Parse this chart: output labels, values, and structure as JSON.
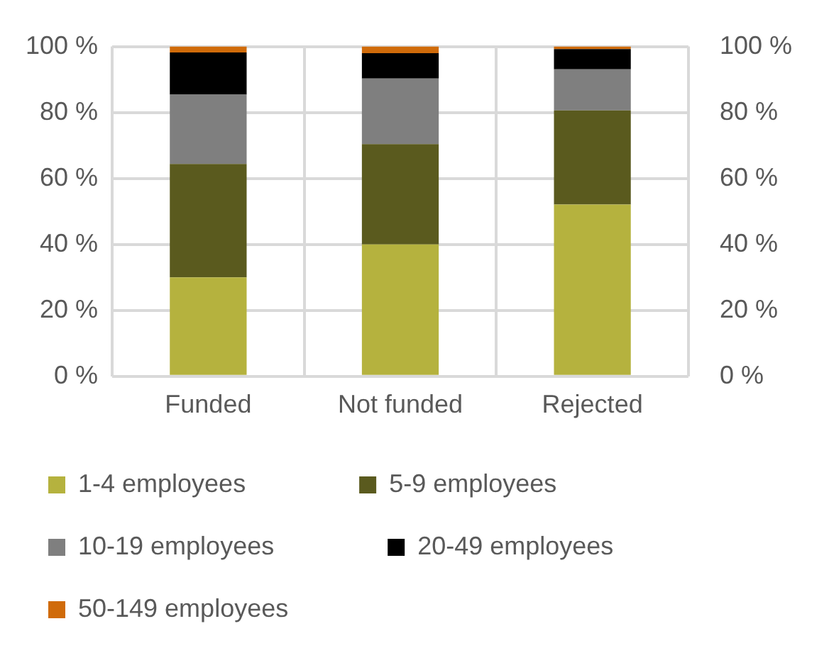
{
  "chart_data": {
    "type": "bar",
    "stacked": true,
    "categories": [
      "Funded",
      "Not funded",
      "Rejected"
    ],
    "series": [
      {
        "name": "1-4 employees",
        "color": "#b5b23e",
        "values": [
          30,
          40,
          52.1
        ]
      },
      {
        "name": "5-9 employees",
        "color": "#5a5a1e",
        "values": [
          34.4,
          30.4,
          28.5
        ]
      },
      {
        "name": "10-19 employees",
        "color": "#7f7f7f",
        "values": [
          21,
          19.9,
          12.5
        ]
      },
      {
        "name": "20-49 employees",
        "color": "#000000",
        "values": [
          12.8,
          7.7,
          6.1
        ]
      },
      {
        "name": "50-149 employees",
        "color": "#d06b0a",
        "values": [
          1.8,
          2,
          0.8
        ]
      }
    ],
    "ylim": [
      0,
      100
    ],
    "yticks": [
      {
        "value": 0,
        "label": "0 %"
      },
      {
        "value": 20,
        "label": "20 %"
      },
      {
        "value": 40,
        "label": "40 %"
      },
      {
        "value": 60,
        "label": "60 %"
      },
      {
        "value": 80,
        "label": "80 %"
      },
      {
        "value": 100,
        "label": "100 %"
      }
    ],
    "y2lim": [
      0,
      100
    ],
    "y2ticks": [
      {
        "value": 0,
        "label": "0 %"
      },
      {
        "value": 20,
        "label": "20 %"
      },
      {
        "value": 40,
        "label": "40 %"
      },
      {
        "value": 60,
        "label": "60 %"
      },
      {
        "value": 80,
        "label": "80 %"
      },
      {
        "value": 100,
        "label": "100 %"
      }
    ],
    "grid": true,
    "legend": "bottom"
  }
}
